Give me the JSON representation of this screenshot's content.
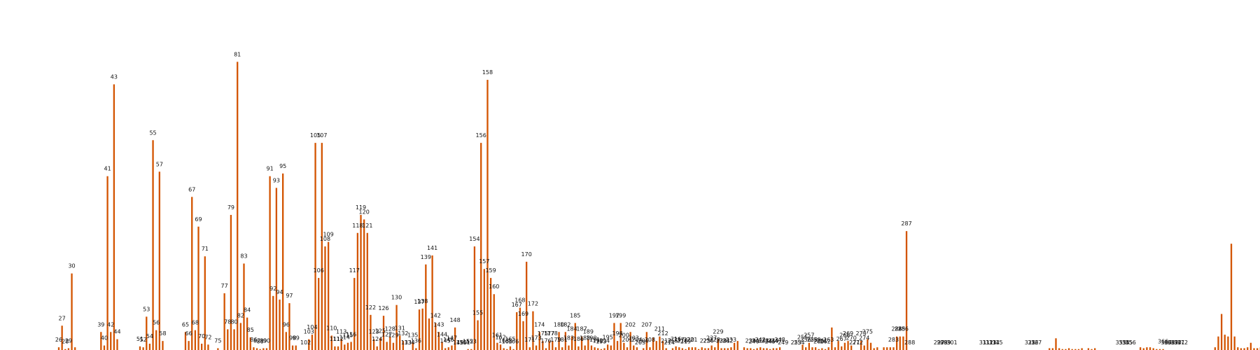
{
  "chart_data": {
    "type": "bar",
    "x_start": 26,
    "bar_color": "#d35400",
    "ylim": [
      0,
      370
    ],
    "grid": false,
    "title": "",
    "xlabel": "",
    "ylabel": "",
    "values": [
      3,
      27,
      1,
      2,
      85,
      3,
      null,
      null,
      null,
      null,
      null,
      null,
      null,
      20,
      5,
      193,
      20,
      295,
      12,
      null,
      null,
      null,
      null,
      null,
      null,
      4,
      3,
      37,
      7,
      233,
      22,
      198,
      10,
      null,
      null,
      null,
      null,
      null,
      null,
      20,
      10,
      170,
      22,
      137,
      7,
      104,
      6,
      null,
      null,
      2,
      null,
      63,
      23,
      150,
      23,
      320,
      30,
      96,
      36,
      14,
      3,
      2,
      1,
      2,
      2,
      193,
      60,
      180,
      56,
      196,
      20,
      52,
      5,
      5,
      null,
      null,
      null,
      12,
      17,
      230,
      80,
      230,
      115,
      120,
      16,
      4,
      4,
      12,
      6,
      8,
      9,
      80,
      130,
      150,
      145,
      130,
      39,
      12,
      4,
      13,
      38,
      9,
      15,
      8,
      50,
      16,
      10,
      null,
      null,
      8,
      2,
      45,
      46,
      95,
      35,
      105,
      30,
      20,
      9,
      2,
      3,
      5,
      25,
      null,
      null,
      null,
      1,
      1,
      115,
      33,
      230,
      90,
      300,
      80,
      62,
      8,
      6,
      2,
      1,
      4,
      1,
      42,
      47,
      32,
      98,
      3,
      43,
      5,
      20,
      10,
      2,
      10,
      10,
      3,
      20,
      3,
      20,
      5,
      15,
      30,
      4,
      15,
      5,
      12,
      5,
      3,
      2,
      1,
      2,
      6,
      5,
      30,
      10,
      30,
      8,
      3,
      20,
      5,
      3,
      null,
      2,
      20,
      3,
      14,
      10,
      15,
      10,
      2,
      null,
      2,
      4,
      3,
      2,
      1,
      3,
      3,
      3,
      1,
      3,
      2,
      2,
      5,
      3,
      12,
      2,
      2,
      2,
      3,
      8,
      10,
      null,
      3,
      2,
      2,
      1,
      2,
      3,
      2,
      2,
      1,
      2,
      2,
      3,
      null,
      null,
      null,
      null,
      null,
      null,
      6,
      3,
      8,
      3,
      3,
      1,
      2,
      1,
      3,
      25,
      3,
      10,
      4,
      8,
      10,
      5,
      null,
      null,
      10,
      5,
      12,
      8,
      2,
      3,
      null,
      3,
      3,
      3,
      3,
      15,
      15,
      15,
      132,
      null,
      null,
      null,
      null,
      null,
      null,
      null,
      null,
      null,
      null,
      null,
      null,
      null,
      null,
      null,
      null,
      null,
      null,
      null,
      null,
      null,
      null,
      null,
      null,
      null,
      null,
      null,
      null,
      null,
      null,
      null,
      null,
      null,
      null,
      null,
      null,
      null,
      null,
      null,
      null,
      null,
      null,
      null,
      2,
      2,
      13,
      2,
      1,
      1,
      2,
      1,
      1,
      1,
      2,
      null,
      2,
      1,
      2,
      null,
      null,
      null,
      null,
      null,
      null,
      null,
      null,
      null,
      null,
      null,
      null,
      null,
      3,
      2,
      3,
      3,
      2,
      1,
      1,
      1,
      null,
      null,
      null,
      null,
      null,
      null,
      null,
      null,
      null,
      null,
      null,
      null,
      null,
      null,
      null,
      3,
      15,
      40,
      17,
      15,
      118,
      15,
      3,
      2,
      2,
      3,
      8,
      2,
      2,
      3,
      4,
      4,
      3,
      2,
      5,
      4
    ],
    "data_labels": [
      {
        "x": 26,
        "text": "26"
      },
      {
        "x": 27,
        "text": "27"
      },
      {
        "x": 28,
        "text": "28"
      },
      {
        "x": 29,
        "text": "29"
      },
      {
        "x": 30,
        "text": "30"
      },
      {
        "x": 39,
        "text": "39"
      },
      {
        "x": 40,
        "text": "40"
      },
      {
        "x": 41,
        "text": "41"
      },
      {
        "x": 42,
        "text": "42"
      },
      {
        "x": 43,
        "text": "43"
      },
      {
        "x": 44,
        "text": "44"
      },
      {
        "x": 51,
        "text": "51"
      },
      {
        "x": 52,
        "text": "52"
      },
      {
        "x": 53,
        "text": "53"
      },
      {
        "x": 54,
        "text": "54"
      },
      {
        "x": 55,
        "text": "55"
      },
      {
        "x": 56,
        "text": "56"
      },
      {
        "x": 57,
        "text": "57"
      },
      {
        "x": 58,
        "text": "58"
      },
      {
        "x": 65,
        "text": "65"
      },
      {
        "x": 66,
        "text": "66"
      },
      {
        "x": 67,
        "text": "67"
      },
      {
        "x": 68,
        "text": "68"
      },
      {
        "x": 69,
        "text": "69"
      },
      {
        "x": 70,
        "text": "70"
      },
      {
        "x": 71,
        "text": "71"
      },
      {
        "x": 72,
        "text": "72"
      },
      {
        "x": 75,
        "text": "75"
      },
      {
        "x": 77,
        "text": "77"
      },
      {
        "x": 78,
        "text": "78"
      },
      {
        "x": 79,
        "text": "79"
      },
      {
        "x": 80,
        "text": "80"
      },
      {
        "x": 81,
        "text": "81"
      },
      {
        "x": 82,
        "text": "82"
      },
      {
        "x": 83,
        "text": "83"
      },
      {
        "x": 84,
        "text": "84"
      },
      {
        "x": 85,
        "text": "85"
      },
      {
        "x": 86,
        "text": "86"
      },
      {
        "x": 87,
        "text": "87"
      },
      {
        "x": 88,
        "text": "88"
      },
      {
        "x": 89,
        "text": "89"
      },
      {
        "x": 90,
        "text": "90"
      },
      {
        "x": 91,
        "text": "91"
      },
      {
        "x": 92,
        "text": "92"
      },
      {
        "x": 93,
        "text": "93"
      },
      {
        "x": 94,
        "text": "94"
      },
      {
        "x": 95,
        "text": "95"
      },
      {
        "x": 96,
        "text": "96"
      },
      {
        "x": 97,
        "text": "97"
      },
      {
        "x": 98,
        "text": "98"
      },
      {
        "x": 99,
        "text": "99"
      },
      {
        "x": 102,
        "text": "102"
      },
      {
        "x": 103,
        "text": "103"
      },
      {
        "x": 104,
        "text": "104"
      },
      {
        "x": 105,
        "text": "105"
      },
      {
        "x": 106,
        "text": "106"
      },
      {
        "x": 107,
        "text": "107"
      },
      {
        "x": 108,
        "text": "108"
      },
      {
        "x": 109,
        "text": "109"
      },
      {
        "x": 110,
        "text": "110"
      },
      {
        "x": 111,
        "text": "111"
      },
      {
        "x": 112,
        "text": "112"
      },
      {
        "x": 113,
        "text": "113"
      },
      {
        "x": 114,
        "text": "114"
      },
      {
        "x": 115,
        "text": "115"
      },
      {
        "x": 116,
        "text": "116"
      },
      {
        "x": 117,
        "text": "117"
      },
      {
        "x": 118,
        "text": "118"
      },
      {
        "x": 119,
        "text": "119"
      },
      {
        "x": 120,
        "text": "120"
      },
      {
        "x": 121,
        "text": "121"
      },
      {
        "x": 122,
        "text": "122"
      },
      {
        "x": 123,
        "text": "123"
      },
      {
        "x": 124,
        "text": "124"
      },
      {
        "x": 125,
        "text": "125"
      },
      {
        "x": 126,
        "text": "126"
      },
      {
        "x": 127,
        "text": "127"
      },
      {
        "x": 128,
        "text": "128"
      },
      {
        "x": 129,
        "text": "129"
      },
      {
        "x": 130,
        "text": "130"
      },
      {
        "x": 131,
        "text": "131"
      },
      {
        "x": 132,
        "text": "132"
      },
      {
        "x": 133,
        "text": "133"
      },
      {
        "x": 134,
        "text": "134"
      },
      {
        "x": 135,
        "text": "135"
      },
      {
        "x": 136,
        "text": "136"
      },
      {
        "x": 137,
        "text": "137"
      },
      {
        "x": 138,
        "text": "138"
      },
      {
        "x": 139,
        "text": "139"
      },
      {
        "x": 141,
        "text": "141"
      },
      {
        "x": 142,
        "text": "142"
      },
      {
        "x": 143,
        "text": "143"
      },
      {
        "x": 144,
        "text": "144"
      },
      {
        "x": 145,
        "text": "145"
      },
      {
        "x": 146,
        "text": "146"
      },
      {
        "x": 147,
        "text": "147"
      },
      {
        "x": 148,
        "text": "148"
      },
      {
        "x": 149,
        "text": "149"
      },
      {
        "x": 150,
        "text": "150"
      },
      {
        "x": 151,
        "text": "151"
      },
      {
        "x": 152,
        "text": "152"
      },
      {
        "x": 153,
        "text": "153"
      },
      {
        "x": 154,
        "text": "154"
      },
      {
        "x": 155,
        "text": "155"
      },
      {
        "x": 156,
        "text": "156"
      },
      {
        "x": 157,
        "text": "157"
      },
      {
        "x": 158,
        "text": "158"
      },
      {
        "x": 159,
        "text": "159"
      },
      {
        "x": 160,
        "text": "160"
      },
      {
        "x": 161,
        "text": "161"
      },
      {
        "x": 162,
        "text": "162"
      },
      {
        "x": 163,
        "text": "163"
      },
      {
        "x": 164,
        "text": "164"
      },
      {
        "x": 165,
        "text": "165"
      },
      {
        "x": 166,
        "text": "166"
      },
      {
        "x": 167,
        "text": "167"
      },
      {
        "x": 168,
        "text": "168"
      },
      {
        "x": 169,
        "text": "169"
      },
      {
        "x": 170,
        "text": "170"
      },
      {
        "x": 171,
        "text": "171"
      },
      {
        "x": 172,
        "text": "172"
      },
      {
        "x": 173,
        "text": "173"
      },
      {
        "x": 174,
        "text": "174"
      },
      {
        "x": 175,
        "text": "175"
      },
      {
        "x": 176,
        "text": "176"
      },
      {
        "x": 177,
        "text": "177"
      },
      {
        "x": 178,
        "text": "178"
      },
      {
        "x": 179,
        "text": "179"
      },
      {
        "x": 180,
        "text": "180"
      },
      {
        "x": 181,
        "text": "181"
      },
      {
        "x": 182,
        "text": "182"
      },
      {
        "x": 183,
        "text": "183"
      },
      {
        "x": 184,
        "text": "184"
      },
      {
        "x": 185,
        "text": "185"
      },
      {
        "x": 186,
        "text": "186"
      },
      {
        "x": 187,
        "text": "187"
      },
      {
        "x": 188,
        "text": "188"
      },
      {
        "x": 189,
        "text": "189"
      },
      {
        "x": 190,
        "text": "190"
      },
      {
        "x": 191,
        "text": "191"
      },
      {
        "x": 192,
        "text": "192"
      },
      {
        "x": 193,
        "text": "193"
      },
      {
        "x": 194,
        "text": "194"
      },
      {
        "x": 195,
        "text": "195"
      },
      {
        "x": 197,
        "text": "197"
      },
      {
        "x": 198,
        "text": "198"
      },
      {
        "x": 199,
        "text": "199"
      },
      {
        "x": 200,
        "text": "200"
      },
      {
        "x": 201,
        "text": "201"
      },
      {
        "x": 202,
        "text": "202"
      },
      {
        "x": 203,
        "text": "203"
      },
      {
        "x": 204,
        "text": "204"
      },
      {
        "x": 205,
        "text": "205"
      },
      {
        "x": 206,
        "text": "206"
      },
      {
        "x": 207,
        "text": "207"
      },
      {
        "x": 208,
        "text": "208"
      },
      {
        "x": 211,
        "text": "211"
      },
      {
        "x": 212,
        "text": "212"
      },
      {
        "x": 213,
        "text": "213"
      },
      {
        "x": 214,
        "text": "214"
      },
      {
        "x": 215,
        "text": "215"
      },
      {
        "x": 216,
        "text": "216"
      },
      {
        "x": 217,
        "text": "217"
      },
      {
        "x": 218,
        "text": "218"
      },
      {
        "x": 219,
        "text": "219"
      },
      {
        "x": 220,
        "text": "220"
      },
      {
        "x": 221,
        "text": "221"
      },
      {
        "x": 225,
        "text": "225"
      },
      {
        "x": 226,
        "text": "226"
      },
      {
        "x": 227,
        "text": "227"
      },
      {
        "x": 228,
        "text": "228"
      },
      {
        "x": 229,
        "text": "229"
      },
      {
        "x": 230,
        "text": "230"
      },
      {
        "x": 231,
        "text": "231"
      },
      {
        "x": 232,
        "text": "232"
      },
      {
        "x": 233,
        "text": "233"
      },
      {
        "x": 239,
        "text": "239"
      },
      {
        "x": 240,
        "text": "240"
      },
      {
        "x": 241,
        "text": "241"
      },
      {
        "x": 242,
        "text": "242"
      },
      {
        "x": 243,
        "text": "243"
      },
      {
        "x": 244,
        "text": "244"
      },
      {
        "x": 245,
        "text": "245"
      },
      {
        "x": 246,
        "text": "246"
      },
      {
        "x": 247,
        "text": "247"
      },
      {
        "x": 248,
        "text": "248"
      },
      {
        "x": 249,
        "text": "249"
      },
      {
        "x": 253,
        "text": "253"
      },
      {
        "x": 254,
        "text": "254"
      },
      {
        "x": 255,
        "text": "255"
      },
      {
        "x": 256,
        "text": "256"
      },
      {
        "x": 257,
        "text": "257"
      },
      {
        "x": 258,
        "text": "258"
      },
      {
        "x": 259,
        "text": "259"
      },
      {
        "x": 260,
        "text": "260"
      },
      {
        "x": 261,
        "text": "261"
      },
      {
        "x": 262,
        "text": "262"
      },
      {
        "x": 263,
        "text": "263"
      },
      {
        "x": 267,
        "text": "267"
      },
      {
        "x": 268,
        "text": "268"
      },
      {
        "x": 269,
        "text": "269"
      },
      {
        "x": 270,
        "text": "270"
      },
      {
        "x": 271,
        "text": "271"
      },
      {
        "x": 272,
        "text": "272"
      },
      {
        "x": 273,
        "text": "273"
      },
      {
        "x": 274,
        "text": "274"
      },
      {
        "x": 275,
        "text": "275"
      },
      {
        "x": 283,
        "text": "283"
      },
      {
        "x": 284,
        "text": "284"
      },
      {
        "x": 285,
        "text": "285"
      },
      {
        "x": 286,
        "text": "286"
      },
      {
        "x": 287,
        "text": "287"
      },
      {
        "x": 288,
        "text": "288"
      },
      {
        "x": 297,
        "text": "297"
      },
      {
        "x": 298,
        "text": "298"
      },
      {
        "x": 299,
        "text": "299"
      },
      {
        "x": 301,
        "text": "301"
      },
      {
        "x": 311,
        "text": "311"
      },
      {
        "x": 312,
        "text": "312"
      },
      {
        "x": 313,
        "text": "313"
      },
      {
        "x": 314,
        "text": "314"
      },
      {
        "x": 315,
        "text": "315"
      },
      {
        "x": 325,
        "text": "325"
      },
      {
        "x": 326,
        "text": "326"
      },
      {
        "x": 327,
        "text": "327"
      },
      {
        "x": 353,
        "text": "353"
      },
      {
        "x": 354,
        "text": "354"
      },
      {
        "x": 355,
        "text": "355"
      },
      {
        "x": 356,
        "text": "356"
      },
      {
        "x": 366,
        "text": "366"
      },
      {
        "x": 367,
        "text": "367"
      },
      {
        "x": 368,
        "text": "368"
      },
      {
        "x": 369,
        "text": "369"
      },
      {
        "x": 370,
        "text": "370"
      },
      {
        "x": 371,
        "text": "371"
      },
      {
        "x": 372,
        "text": "372"
      }
    ]
  }
}
